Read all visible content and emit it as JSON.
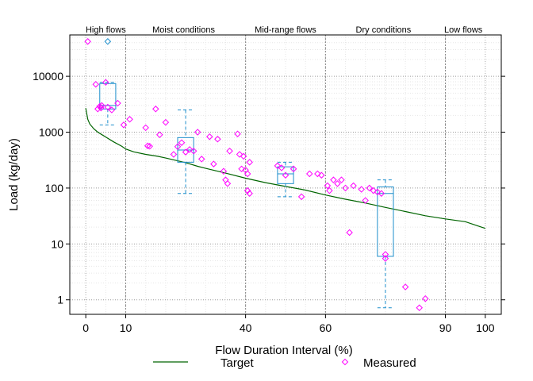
{
  "chart_data": {
    "type": "line",
    "xlabel": "Flow Duration Interval (%)",
    "ylabel": "Load (kg/day)",
    "xlim": [
      -4,
      104
    ],
    "ylim": [
      0.55,
      55000
    ],
    "y_scale": "log",
    "x_ticks": [
      0,
      10,
      40,
      60,
      90,
      100
    ],
    "x_tick_labels": [
      "0",
      "10",
      "40",
      "60",
      "90",
      "100"
    ],
    "y_ticks": [
      1,
      10,
      100,
      1000,
      10000
    ],
    "y_tick_labels": [
      "1",
      "10",
      "100",
      "1000",
      "10000"
    ],
    "zone_boundaries": [
      10,
      40,
      60,
      90
    ],
    "zones": [
      {
        "label": "High flows",
        "x_center": 5
      },
      {
        "label": "Moist conditions",
        "x_center": 24.5
      },
      {
        "label": "Mid-range flows",
        "x_center": 50
      },
      {
        "label": "Dry conditions",
        "x_center": 74.5
      },
      {
        "label": "Low flows",
        "x_center": 94.5
      }
    ],
    "grid": true,
    "legend": {
      "position": "bottom",
      "items": [
        {
          "label": "Target",
          "kind": "line",
          "color": "#006400"
        },
        {
          "label": "Measured",
          "kind": "marker",
          "color": "#ff00ff"
        }
      ]
    },
    "series": [
      {
        "name": "Target",
        "kind": "line",
        "color": "#006400",
        "x": [
          0,
          0.5,
          1,
          2,
          3,
          5,
          7,
          9,
          10,
          12,
          15,
          18,
          20,
          25,
          28,
          30,
          35,
          40,
          45,
          50,
          55,
          60,
          65,
          70,
          75,
          80,
          85,
          90,
          95,
          99,
          100
        ],
        "y": [
          2700,
          1700,
          1400,
          1150,
          1000,
          820,
          670,
          560,
          500,
          445,
          400,
          370,
          345,
          285,
          245,
          225,
          185,
          150,
          125,
          107,
          92,
          75,
          63,
          54,
          45,
          38,
          32,
          28,
          25,
          20,
          19
        ]
      },
      {
        "name": "Measured",
        "kind": "scatter",
        "color": "#ff00ff",
        "points": [
          [
            0.5,
            42000
          ],
          [
            2.5,
            7200
          ],
          [
            3,
            2600
          ],
          [
            3.5,
            2900
          ],
          [
            3.8,
            2700
          ],
          [
            4,
            3000
          ],
          [
            5,
            7800
          ],
          [
            5.5,
            2800
          ],
          [
            6.5,
            2500
          ],
          [
            8,
            3300
          ],
          [
            9.5,
            1350
          ],
          [
            11,
            1700
          ],
          [
            15,
            1200
          ],
          [
            15.5,
            570
          ],
          [
            16,
            560
          ],
          [
            17.5,
            2600
          ],
          [
            18.5,
            900
          ],
          [
            20,
            1500
          ],
          [
            22,
            400
          ],
          [
            23,
            550
          ],
          [
            24,
            650
          ],
          [
            25,
            440
          ],
          [
            26,
            490
          ],
          [
            27,
            460
          ],
          [
            28,
            1000
          ],
          [
            29,
            330
          ],
          [
            31,
            830
          ],
          [
            32,
            270
          ],
          [
            33,
            750
          ],
          [
            34.5,
            200
          ],
          [
            35,
            140
          ],
          [
            35.5,
            120
          ],
          [
            36,
            460
          ],
          [
            38,
            930
          ],
          [
            38.5,
            400
          ],
          [
            39,
            220
          ],
          [
            39.5,
            370
          ],
          [
            40,
            210
          ],
          [
            40.5,
            180
          ],
          [
            40.5,
            90
          ],
          [
            41,
            80
          ],
          [
            41,
            290
          ],
          [
            48,
            250
          ],
          [
            49,
            230
          ],
          [
            50,
            170
          ],
          [
            52,
            220
          ],
          [
            54,
            70
          ],
          [
            56,
            180
          ],
          [
            58,
            180
          ],
          [
            59,
            170
          ],
          [
            60.5,
            110
          ],
          [
            61,
            90
          ],
          [
            62,
            140
          ],
          [
            63,
            120
          ],
          [
            64,
            140
          ],
          [
            65,
            100
          ],
          [
            66,
            16
          ],
          [
            67,
            110
          ],
          [
            69,
            95
          ],
          [
            70,
            60
          ],
          [
            71,
            100
          ],
          [
            72,
            90
          ],
          [
            73,
            85
          ],
          [
            74,
            80
          ],
          [
            75,
            6.5
          ],
          [
            75,
            5.5
          ],
          [
            80,
            1.7
          ],
          [
            83.5,
            0.72
          ],
          [
            85,
            1.05
          ]
        ]
      },
      {
        "name": "",
        "kind": "boxplot",
        "color": "#1e8fcc",
        "boxes": [
          {
            "x": 5.5,
            "width": 4,
            "whisker_low": 1350,
            "q1": 2600,
            "median": 3000,
            "q3": 7400,
            "whisker_high": 7800,
            "outliers": [
              42000
            ]
          },
          {
            "x": 25,
            "width": 4,
            "whisker_low": 80,
            "q1": 290,
            "median": 480,
            "q3": 800,
            "whisker_high": 2500,
            "outliers": []
          },
          {
            "x": 50,
            "width": 4,
            "whisker_low": 70,
            "q1": 120,
            "median": 180,
            "q3": 240,
            "whisker_high": 290,
            "outliers": []
          },
          {
            "x": 75,
            "width": 4,
            "whisker_low": 0.72,
            "q1": 6,
            "median": 80,
            "q3": 105,
            "whisker_high": 140,
            "outliers": []
          }
        ]
      }
    ]
  }
}
